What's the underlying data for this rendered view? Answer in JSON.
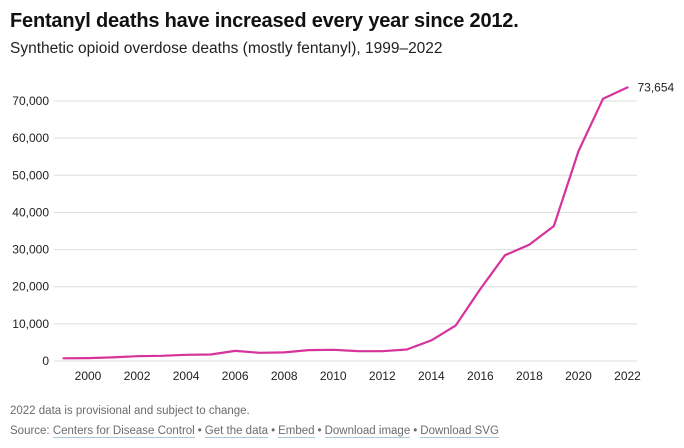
{
  "header": {
    "title": "Fentanyl deaths have increased every year since 2012.",
    "subtitle": "Synthetic opioid overdose deaths (mostly fentanyl), 1999–2022"
  },
  "footer": {
    "note": "2022 data is provisional and subject to change.",
    "source_prefix": "Source: ",
    "links": [
      "Centers for Disease Control",
      "Get the data",
      "Embed",
      "Download image",
      "Download SVG"
    ],
    "separator": "•"
  },
  "colors": {
    "line": "#d6339b",
    "grid": "#dddddd",
    "text": "#222222"
  },
  "chart_data": {
    "type": "line",
    "title": "Fentanyl deaths have increased every year since 2012.",
    "subtitle": "Synthetic opioid overdose deaths (mostly fentanyl), 1999–2022",
    "xlabel": "",
    "ylabel": "",
    "x": [
      1999,
      2000,
      2001,
      2002,
      2003,
      2004,
      2005,
      2006,
      2007,
      2008,
      2009,
      2010,
      2011,
      2012,
      2013,
      2014,
      2015,
      2016,
      2017,
      2018,
      2019,
      2020,
      2021,
      2022
    ],
    "series": [
      {
        "name": "Synthetic opioid overdose deaths",
        "values": [
          730,
          782,
          957,
          1295,
          1400,
          1664,
          1742,
          2707,
          2213,
          2306,
          2946,
          3007,
          2666,
          2628,
          3105,
          5544,
          9580,
          19413,
          28466,
          31335,
          36359,
          56516,
          70601,
          73654
        ]
      }
    ],
    "end_label": "73,654",
    "xlim": [
      1999,
      2022
    ],
    "ylim": [
      0,
      70000
    ],
    "x_ticks": [
      2000,
      2002,
      2004,
      2006,
      2008,
      2010,
      2012,
      2014,
      2016,
      2018,
      2020,
      2022
    ],
    "x_tick_labels": [
      "2000",
      "2002",
      "2004",
      "2006",
      "2008",
      "2010",
      "2012",
      "2014",
      "2016",
      "2018",
      "2020",
      "2022"
    ],
    "y_ticks": [
      0,
      10000,
      20000,
      30000,
      40000,
      50000,
      60000,
      70000
    ],
    "y_tick_labels": [
      "0",
      "10,000",
      "20,000",
      "30,000",
      "40,000",
      "50,000",
      "60,000",
      "70,000"
    ],
    "grid": true,
    "legend": "none"
  }
}
